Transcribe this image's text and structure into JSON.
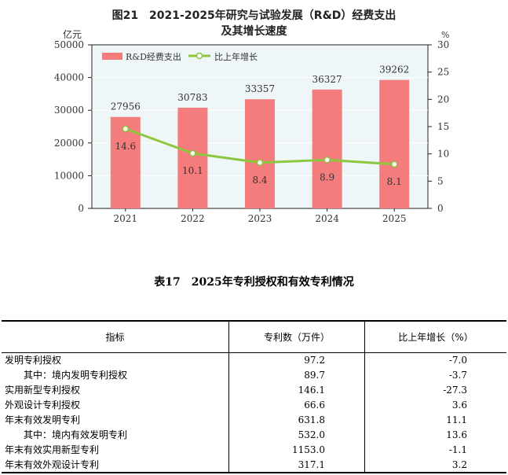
{
  "chart": {
    "title_line1": "图21　2021-2025年研究与试验发展（R&D）经费支出",
    "title_line2": "及其增长速度",
    "left_unit": "亿元",
    "right_unit": "%"
  },
  "chart_data": {
    "type": "bar+line",
    "categories": [
      "2021",
      "2022",
      "2023",
      "2024",
      "2025"
    ],
    "series": [
      {
        "name": "R&D经费支出",
        "type": "bar",
        "axis": "left",
        "values": [
          27956,
          30783,
          33357,
          36327,
          39262
        ],
        "color": "#f47c7c"
      },
      {
        "name": "比上年增长",
        "type": "line",
        "axis": "right",
        "values": [
          14.6,
          10.1,
          8.4,
          8.9,
          8.1
        ],
        "color": "#8dc63f"
      }
    ],
    "left_ylim": [
      0,
      50000
    ],
    "left_ticks": [
      "0",
      "10000",
      "20000",
      "30000",
      "40000",
      "50000"
    ],
    "right_ylim": [
      0,
      30
    ],
    "right_ticks": [
      "0",
      "5",
      "10",
      "15",
      "20",
      "25",
      "30"
    ],
    "legend": "top-left",
    "background": "#eef6f8"
  },
  "table": {
    "title": "表17　2025年专利授权和有效专利情况",
    "headers": [
      "指标",
      "专利数（万件）",
      "比上年增长（%）"
    ],
    "rows": [
      {
        "label": "发明专利授权",
        "count": "97.2",
        "growth": "-7.0",
        "sub": false
      },
      {
        "label": "其中：境内发明专利授权",
        "count": "89.7",
        "growth": "-3.7",
        "sub": true
      },
      {
        "label": "实用新型专利授权",
        "count": "146.1",
        "growth": "-27.3",
        "sub": false
      },
      {
        "label": "外观设计专利授权",
        "count": "66.6",
        "growth": "3.6",
        "sub": false
      },
      {
        "label": "年末有效发明专利",
        "count": "631.8",
        "growth": "11.1",
        "sub": false
      },
      {
        "label": "其中：境内有效发明专利",
        "count": "532.0",
        "growth": "13.6",
        "sub": true
      },
      {
        "label": "年末有效实用新型专利",
        "count": "1153.0",
        "growth": "-1.1",
        "sub": false
      },
      {
        "label": "年末有效外观设计专利",
        "count": "317.1",
        "growth": "3.2",
        "sub": false
      }
    ]
  }
}
